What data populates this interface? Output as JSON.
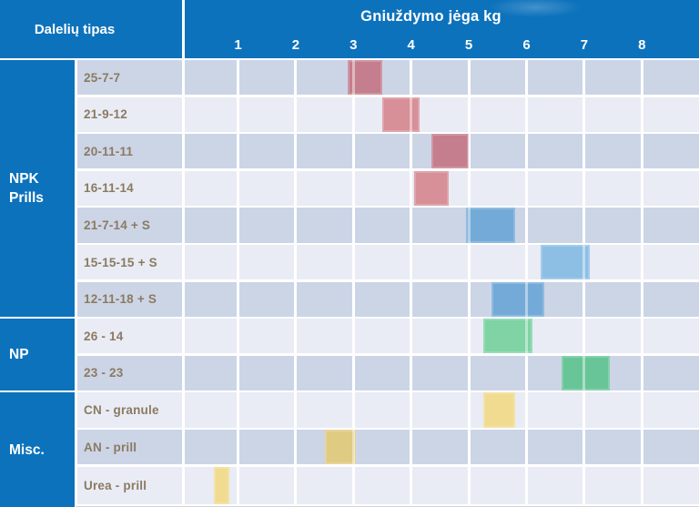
{
  "header": {
    "left_title": "Dalelių tipas",
    "right_title": "Gniuždymo jėga kg"
  },
  "chart_data": {
    "type": "bar",
    "subtype": "horizontal-range-gantt",
    "title": "Gniuždymo jėga kg",
    "row_header": "Dalelių tipas",
    "xlabel": "Gniuždymo jėga kg",
    "x_ticks": [
      1,
      2,
      3,
      4,
      5,
      6,
      7,
      8
    ],
    "x_range": [
      0.1,
      9.0
    ],
    "grid": true,
    "legend": "none",
    "groups": [
      {
        "label": "NPK\nPrills",
        "rows": [
          {
            "label": "25-7-7",
            "from": 2.9,
            "to": 3.5,
            "color": "red_dark"
          },
          {
            "label": "21-9-12",
            "from": 3.5,
            "to": 4.15,
            "color": "red_light"
          },
          {
            "label": "20-11-11",
            "from": 4.35,
            "to": 5.0,
            "color": "red_dark"
          },
          {
            "label": "16-11-14",
            "from": 4.05,
            "to": 4.65,
            "color": "red_light"
          },
          {
            "label": "21-7-14 + S",
            "from": 4.95,
            "to": 5.8,
            "color": "blue_med"
          },
          {
            "label": "15-15-15 + S",
            "from": 6.25,
            "to": 7.1,
            "color": "blue_light"
          },
          {
            "label": "12-11-18 + S",
            "from": 5.4,
            "to": 6.3,
            "color": "blue_med"
          }
        ]
      },
      {
        "label": "NP",
        "rows": [
          {
            "label": "26 - 14",
            "from": 5.25,
            "to": 6.1,
            "color": "green_light"
          },
          {
            "label": "23 - 23",
            "from": 6.6,
            "to": 7.45,
            "color": "green_dark"
          }
        ]
      },
      {
        "label": "Misc.",
        "rows": [
          {
            "label": "CN - granule",
            "from": 5.25,
            "to": 5.8,
            "color": "yellow_light"
          },
          {
            "label": "AN - prill",
            "from": 2.5,
            "to": 3.05,
            "color": "yellow_dark"
          },
          {
            "label": "Urea - prill",
            "from": 0.58,
            "to": 0.85,
            "color": "yellow_light"
          }
        ]
      }
    ]
  },
  "colors": {
    "header_bg": "#0d72bc",
    "row_dark": "#ccd5e6",
    "row_light": "#e9ecf4",
    "label_text": "#8b7a62",
    "header_text": "#ffffff",
    "red_dark": "#c47e8d",
    "red_light": "#d78f98",
    "blue_med": "#74aad8",
    "blue_light": "#8dbfe5",
    "green_light": "#7fd3a5",
    "green_dark": "#68c598",
    "yellow_light": "#f0db90",
    "yellow_dark": "#dfcb82",
    "bottom_edge": "#cfd6e2"
  }
}
